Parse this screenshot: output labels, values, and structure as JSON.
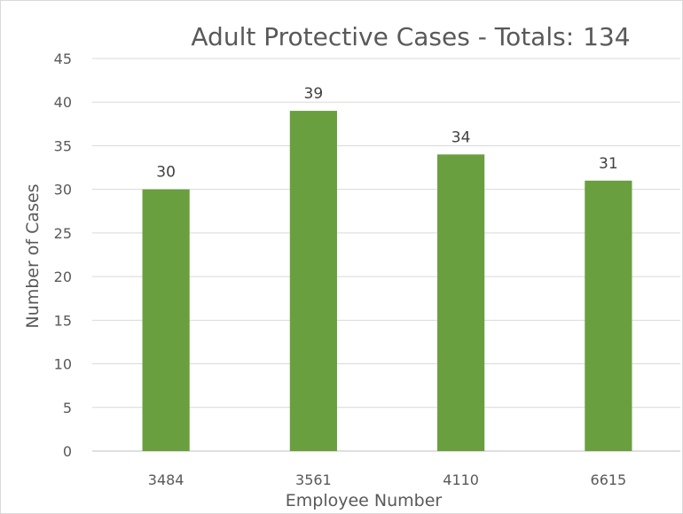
{
  "chart_data": {
    "type": "bar",
    "title": "Adult Protective Cases - Totals:",
    "title_total": "134",
    "xlabel": "Employee Number",
    "ylabel": "Number of Cases",
    "categories": [
      "3484",
      "3561",
      "4110",
      "6615"
    ],
    "values": [
      30,
      39,
      34,
      31
    ],
    "data_labels": [
      "30",
      "39",
      "34",
      "31"
    ],
    "ylim": [
      0,
      45
    ],
    "y_ticks": [
      0,
      5,
      10,
      15,
      20,
      25,
      30,
      35,
      40,
      45
    ],
    "grid": true,
    "legend": "none",
    "bar_color": "#6a9f40",
    "grid_color": "#d9d9d9",
    "text_color": "#595959"
  }
}
